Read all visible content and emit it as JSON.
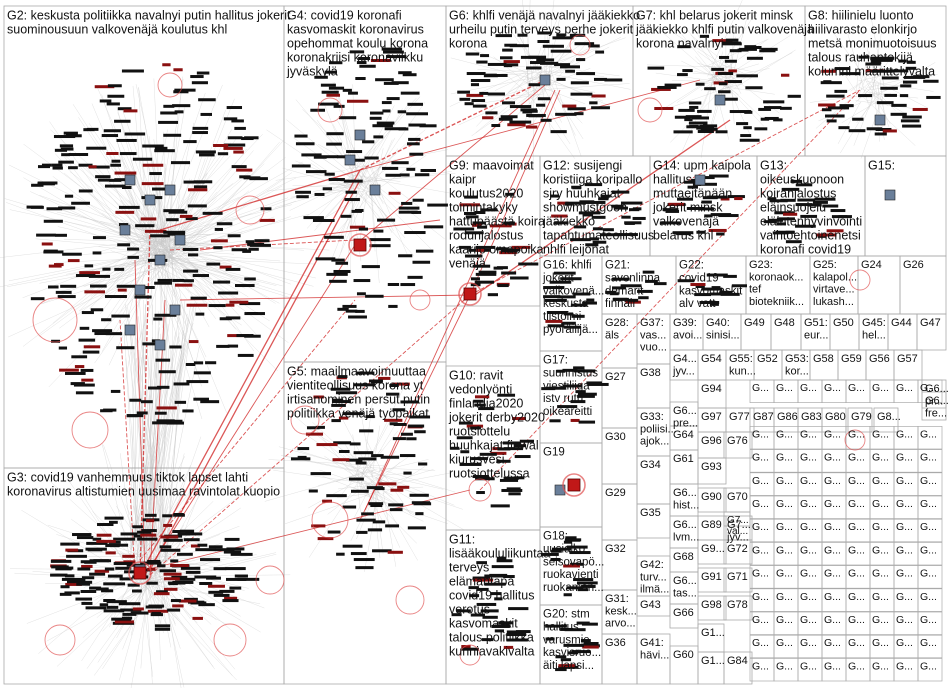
{
  "groups": [
    {
      "id": "G2",
      "lines": [
        "G2: keskusta politiikka navalnyi putin hallitus jokerit",
        "suominousuun valkovenäjä koulutus khl"
      ]
    },
    {
      "id": "G4",
      "lines": [
        "G4: covid19 koronafi",
        "kasvomaskit koronavirus",
        "opehommat koulu korona",
        "koronakriisi koronavilkku",
        "jyväskylä"
      ]
    },
    {
      "id": "G6",
      "lines": [
        "G6: khlfi venäjä navalnyi jääkiekko",
        "urheilu putin terveys perhe jokerit",
        "korona"
      ]
    },
    {
      "id": "G7",
      "lines": [
        "G7: khl belarus jokerit minsk",
        "jääkiekko khlfi putin valkovenäjä",
        "korona navalnyi"
      ]
    },
    {
      "id": "G8",
      "lines": [
        "G8: hiilinielu luonto",
        "hiilivarasto elonkirjo",
        "metsä monimuotoisuus",
        "talous rauhantekijä",
        "kolumni määrittelyvalta"
      ]
    },
    {
      "id": "G9",
      "lines": [
        "G9: maavoimat",
        "kaipr",
        "koulutus2020",
        "toimintakyky",
        "hattupäästä koira",
        "rodunjalostus",
        "kaarijo omapoika",
        "venäjä"
      ]
    },
    {
      "id": "G12",
      "lines": [
        "G12: susijengi",
        "koristiiga koripallo",
        "sjry huuhkajat",
        "showmustgoon",
        "jääkiekko",
        "tapahtumateollisuus",
        "nhlfi leijonat"
      ]
    },
    {
      "id": "G14",
      "lines": [
        "G14: upm kaipola",
        "hallitus",
        "muttaeitänään",
        "jokerit minsk",
        "valkovenäjä",
        "belarus khl"
      ]
    },
    {
      "id": "G13",
      "lines": [
        "G13:",
        "oikeuskuonoon",
        "koiranjalostus",
        "eläinsuojelu",
        "eläintenhyvinvointi",
        "vaihtoehtoinenetsi",
        "koronafi covid19"
      ]
    },
    {
      "id": "G15",
      "lines": [
        "G15:"
      ]
    },
    {
      "id": "G16",
      "lines": [
        "G16: khlfi",
        "jokerit",
        "valkovenä...",
        "keskusta",
        "tiistoimi",
        "pyöräilijä..."
      ]
    },
    {
      "id": "G21",
      "lines": [
        "G21:",
        "savonlinna",
        "demarit",
        "finnair"
      ]
    },
    {
      "id": "G22",
      "lines": [
        "G22:",
        "covid19",
        "kasvomaskit",
        "alv vatt"
      ]
    },
    {
      "id": "G23",
      "lines": [
        "G23:",
        "koronaok...",
        "tef",
        "biotekniik..."
      ]
    },
    {
      "id": "G25",
      "lines": [
        "G25:",
        "kalapol...",
        "virtave...",
        "lukash..."
      ]
    },
    {
      "id": "G24",
      "lines": [
        "G24"
      ]
    },
    {
      "id": "G26",
      "lines": [
        "G26"
      ]
    },
    {
      "id": "G3",
      "lines": [
        "G3: covid19 vanhemmuus tiktok lapset lahti",
        "koronavirus altistumien uusimaa ravintolat kuopio"
      ]
    },
    {
      "id": "G5",
      "lines": [
        "G5: maailmaavoimuuttaa",
        "vientiteollisuus korona yt",
        "irtisanominen persut putin",
        "politiikka venäjä työpaikat"
      ]
    },
    {
      "id": "G10",
      "lines": [
        "G10: ravit",
        "vedonlyönti",
        "finlandia2020",
        "jokerit derby2020",
        "ruotsiottelu",
        "huuhkajat finwal",
        "kiurusvesi",
        "ruotsiottelussa"
      ]
    },
    {
      "id": "G11",
      "lines": [
        "G11:",
        "lisääkoululiikuntaa",
        "terveys",
        "elämäntapa",
        "covid19 hallitus",
        "verotus",
        "kasvomaskit",
        "talous politiikka",
        "kunniavakivalta"
      ]
    },
    {
      "id": "G17",
      "lines": [
        "G17:",
        "suunnistus",
        "viestiliiga",
        "istv rutu",
        "oikeareitti"
      ]
    },
    {
      "id": "G19",
      "lines": [
        "G19"
      ]
    },
    {
      "id": "G18",
      "lines": [
        "G18:",
        "uusialko",
        "seisovapö...",
        "ruokavienti",
        "ruokaman..."
      ]
    },
    {
      "id": "G20",
      "lines": [
        "G20: stm",
        "hallitus",
        "varusmie...",
        "kasvisruo...",
        "äiti lapsi..."
      ]
    },
    {
      "id": "G28",
      "lines": [
        "G28:",
        "äls"
      ]
    },
    {
      "id": "G37",
      "lines": [
        "G37:",
        "vas...",
        "vuo..."
      ]
    },
    {
      "id": "G39",
      "lines": [
        "G39:",
        "avoi..."
      ]
    },
    {
      "id": "G40",
      "lines": [
        "G40:",
        "sinisi..."
      ]
    },
    {
      "id": "G49",
      "lines": [
        "G49"
      ]
    },
    {
      "id": "G48",
      "lines": [
        "G48"
      ]
    },
    {
      "id": "G51",
      "lines": [
        "G51:",
        "eur..."
      ]
    },
    {
      "id": "G50",
      "lines": [
        "G50"
      ]
    },
    {
      "id": "G45",
      "lines": [
        "G45:",
        "hel..."
      ]
    },
    {
      "id": "G44",
      "lines": [
        "G44"
      ]
    },
    {
      "id": "G47",
      "lines": [
        "G47"
      ]
    },
    {
      "id": "G4x",
      "lines": [
        "G4...",
        "jyv..."
      ]
    },
    {
      "id": "G54",
      "lines": [
        "G54"
      ]
    },
    {
      "id": "G55",
      "lines": [
        "G55:",
        "kun..."
      ]
    },
    {
      "id": "G52",
      "lines": [
        "G52"
      ]
    },
    {
      "id": "G53",
      "lines": [
        "G53:",
        "kor..."
      ]
    },
    {
      "id": "G58",
      "lines": [
        "G58"
      ]
    },
    {
      "id": "G59",
      "lines": [
        "G59"
      ]
    },
    {
      "id": "G56",
      "lines": [
        "G56"
      ]
    },
    {
      "id": "G57",
      "lines": [
        "G57"
      ]
    },
    {
      "id": "G27",
      "lines": [
        "G27"
      ]
    },
    {
      "id": "G38",
      "lines": [
        "G38"
      ]
    },
    {
      "id": "G33",
      "lines": [
        "G33:",
        "poliisi...",
        "ajok..."
      ]
    },
    {
      "id": "G30",
      "lines": [
        "G30"
      ]
    },
    {
      "id": "G34",
      "lines": [
        "G34"
      ]
    },
    {
      "id": "G29",
      "lines": [
        "G29"
      ]
    },
    {
      "id": "G35",
      "lines": [
        "G35"
      ]
    },
    {
      "id": "G32",
      "lines": [
        "G32"
      ]
    },
    {
      "id": "G42",
      "lines": [
        "G42:",
        "turv...",
        "ilmä..."
      ]
    },
    {
      "id": "G31",
      "lines": [
        "G31:",
        "kesk...",
        "arvo..."
      ]
    },
    {
      "id": "G43",
      "lines": [
        "G43"
      ]
    },
    {
      "id": "G36",
      "lines": [
        "G36"
      ]
    },
    {
      "id": "G41",
      "lines": [
        "G41:",
        "hävi..."
      ]
    },
    {
      "id": "G60",
      "lines": [
        "G60"
      ]
    },
    {
      "id": "G6x",
      "lines": [
        "G6...",
        "pre..."
      ]
    },
    {
      "id": "G64",
      "lines": [
        "G64"
      ]
    },
    {
      "id": "G61",
      "lines": [
        "G61"
      ]
    },
    {
      "id": "G6y",
      "lines": [
        "G6...",
        "hist..."
      ]
    },
    {
      "id": "G6z",
      "lines": [
        "G6...",
        "lvm..."
      ]
    },
    {
      "id": "G68",
      "lines": [
        "G68"
      ]
    },
    {
      "id": "G6w",
      "lines": [
        "G6...",
        "tas..."
      ]
    },
    {
      "id": "G66",
      "lines": [
        "G66"
      ]
    },
    {
      "id": "G1x",
      "lines": [
        "G1..."
      ]
    },
    {
      "id": "G94",
      "lines": [
        "G94"
      ]
    },
    {
      "id": "G97",
      "lines": [
        "G97"
      ]
    },
    {
      "id": "G77",
      "lines": [
        "G77"
      ]
    },
    {
      "id": "G96",
      "lines": [
        "G96"
      ]
    },
    {
      "id": "G93",
      "lines": [
        "G93"
      ]
    },
    {
      "id": "G90",
      "lines": [
        "G90"
      ]
    },
    {
      "id": "G89",
      "lines": [
        "G89"
      ]
    },
    {
      "id": "G9x",
      "lines": [
        "G9..."
      ]
    },
    {
      "id": "G91",
      "lines": [
        "G91"
      ]
    },
    {
      "id": "G98",
      "lines": [
        "G98"
      ]
    },
    {
      "id": "G1y",
      "lines": [
        "G1..."
      ]
    },
    {
      "id": "G70",
      "lines": [
        "G70"
      ]
    },
    {
      "id": "G72",
      "lines": [
        "G72"
      ]
    },
    {
      "id": "G71",
      "lines": [
        "G71"
      ]
    },
    {
      "id": "G78",
      "lines": [
        "G78"
      ]
    },
    {
      "id": "G84",
      "lines": [
        "G84"
      ]
    },
    {
      "id": "G76",
      "lines": [
        "G76"
      ]
    },
    {
      "id": "G87",
      "lines": [
        "G87"
      ]
    },
    {
      "id": "G86",
      "lines": [
        "G86"
      ]
    },
    {
      "id": "G83",
      "lines": [
        "G83"
      ]
    },
    {
      "id": "G80",
      "lines": [
        "G80"
      ]
    },
    {
      "id": "G79",
      "lines": [
        "G79"
      ]
    },
    {
      "id": "G8x",
      "lines": [
        "G8..."
      ]
    },
    {
      "id": "G7x",
      "lines": [
        "G7...",
        "jyv..."
      ]
    },
    {
      "id": "G62",
      "lines": [
        "G6...",
        "pr..."
      ]
    },
    {
      "id": "G75",
      "lines": [
        "G6...",
        "fre..."
      ]
    },
    {
      "id": "G74",
      "lines": [
        "G7...",
        "val..."
      ]
    }
  ],
  "colors": {
    "background": "#ffffff",
    "border": "#aaaaaa",
    "edge_red": "#d02020",
    "edge_gray": "#c8c8c8",
    "node": "#111111",
    "node_red": "#8a1010",
    "halo": "#e05050"
  }
}
